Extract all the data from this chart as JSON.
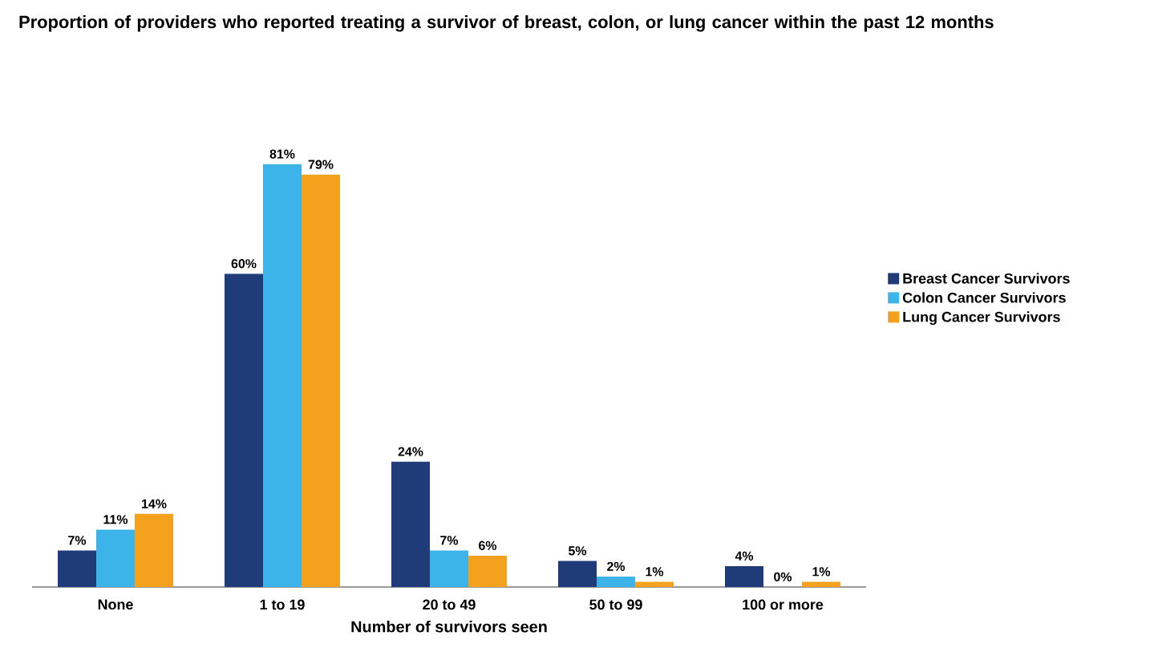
{
  "chart_data": {
    "type": "bar",
    "title": "Proportion of providers who reported treating a survivor of breast, colon, or lung cancer within the past 12 months",
    "xlabel": "Number of survivors seen",
    "categories": [
      "None",
      "1 to 19",
      "20 to 49",
      "50 to 99",
      "100 or more"
    ],
    "legend": "right",
    "series": [
      {
        "name": "Breast Cancer Survivors",
        "color": "#1f3b78",
        "values": [
          7,
          60,
          24,
          5,
          4
        ],
        "value_labels": [
          "7%",
          "60%",
          "24%",
          "5%",
          "4%"
        ]
      },
      {
        "name": "Colon Cancer Survivors",
        "color": "#3cb4ea",
        "values": [
          11,
          81,
          7,
          2,
          0
        ],
        "value_labels": [
          "11%",
          "81%",
          "7%",
          "2%",
          "0%"
        ]
      },
      {
        "name": "Lung Cancer Survivors",
        "color": "#f4a11d",
        "values": [
          14,
          79,
          6,
          1,
          1
        ],
        "value_labels": [
          "14%",
          "79%",
          "6%",
          "1%",
          "1%"
        ]
      }
    ]
  }
}
